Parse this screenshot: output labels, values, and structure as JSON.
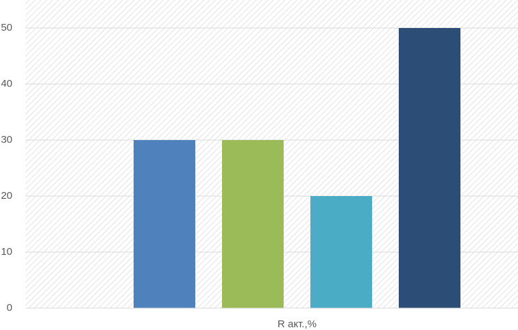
{
  "chart_data": {
    "type": "bar",
    "categories": [
      "R акт.,%"
    ],
    "series": [
      {
        "color": "#4f81bd",
        "values": [
          30
        ]
      },
      {
        "color": "#9bbb59",
        "values": [
          30
        ]
      },
      {
        "color": "#4bacc6",
        "values": [
          20
        ]
      },
      {
        "color": "#2c4d75",
        "values": [
          50
        ]
      }
    ],
    "ylim": [
      0,
      55
    ],
    "yticks": [
      0,
      10,
      20,
      30,
      40,
      50
    ],
    "grid": true
  }
}
